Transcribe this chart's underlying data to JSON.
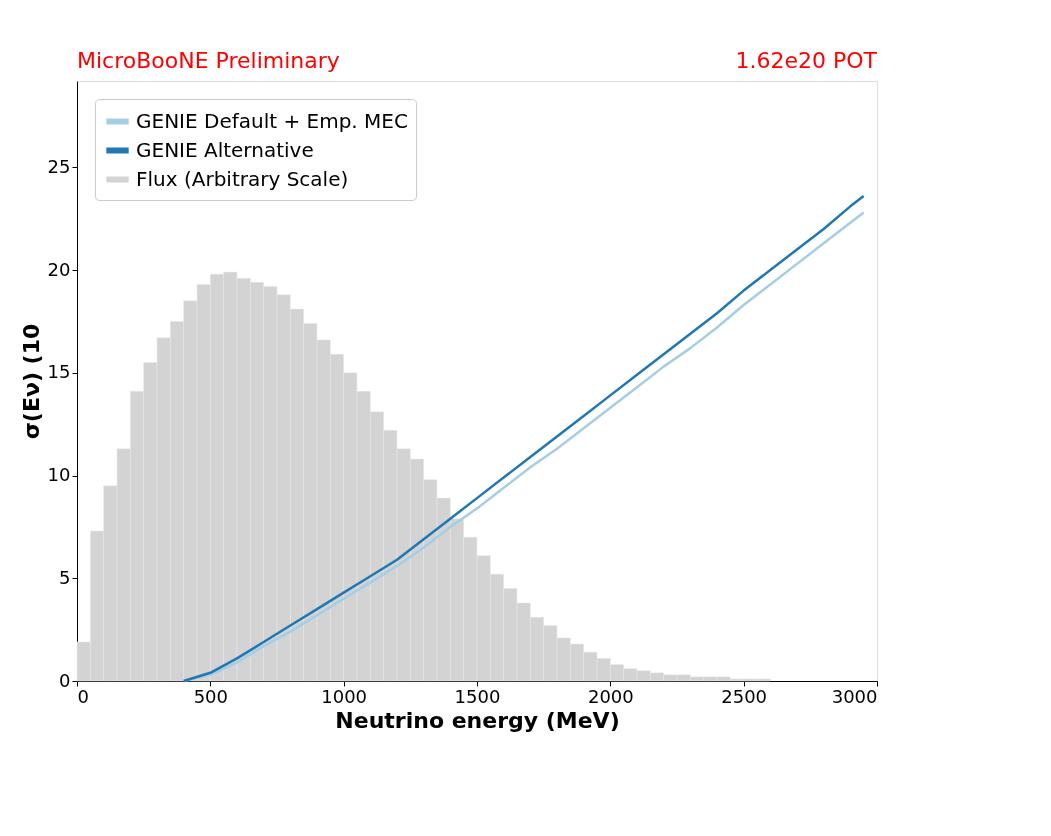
{
  "chart_data": {
    "type": "line",
    "xlabel": "Neutrino energy (MeV)",
    "ylabel": "σ(Eν) (10",
    "annotations": [
      "MicroBooNE Preliminary",
      "1.62e20 POT"
    ],
    "xlim": [
      0,
      3000
    ],
    "xticks": [
      0,
      500,
      1000,
      1500,
      2000,
      2500,
      3000
    ],
    "ylim": [
      0,
      29.2
    ],
    "yticks": [
      0,
      5,
      10,
      15,
      20,
      25
    ],
    "grid": false,
    "legend": "top left",
    "series": [
      {
        "name": "GENIE Default + Emp. MEC",
        "color": "#a6cee3",
        "x": [
          400,
          500,
          600,
          700,
          800,
          900,
          1000,
          1100,
          1200,
          1300,
          1400,
          1500,
          1600,
          1700,
          1800,
          1900,
          2000,
          2100,
          2200,
          2300,
          2400,
          2500,
          2600,
          2700,
          2800,
          2900,
          2950
        ],
        "values": [
          0,
          0.3,
          0.9,
          1.7,
          2.4,
          3.2,
          4.0,
          4.8,
          5.6,
          6.5,
          7.5,
          8.4,
          9.4,
          10.4,
          11.3,
          12.3,
          13.3,
          14.3,
          15.3,
          16.2,
          17.2,
          18.3,
          19.3,
          20.3,
          21.3,
          22.3,
          22.8
        ]
      },
      {
        "name": "GENIE Alternative",
        "color": "#1f78b4",
        "x": [
          400,
          500,
          600,
          700,
          800,
          900,
          1000,
          1100,
          1200,
          1300,
          1400,
          1500,
          1600,
          1700,
          1800,
          1900,
          2000,
          2100,
          2200,
          2300,
          2400,
          2500,
          2600,
          2700,
          2800,
          2900,
          2950
        ],
        "values": [
          0,
          0.4,
          1.1,
          1.9,
          2.7,
          3.5,
          4.3,
          5.1,
          5.9,
          6.9,
          7.9,
          8.9,
          9.9,
          10.9,
          11.9,
          12.9,
          13.9,
          14.9,
          15.9,
          16.9,
          17.9,
          19.0,
          20.0,
          21.0,
          22.0,
          23.1,
          23.6
        ]
      },
      {
        "name": "Flux (Arbitrary Scale)",
        "type": "histogram",
        "color": "#d3d3d3",
        "bins": [
          0,
          50,
          100,
          150,
          200,
          250,
          300,
          350,
          400,
          450,
          500,
          550,
          600,
          650,
          700,
          750,
          800,
          850,
          900,
          950,
          1000,
          1050,
          1100,
          1150,
          1200,
          1250,
          1300,
          1350,
          1400,
          1450,
          1500,
          1550,
          1600,
          1650,
          1700,
          1750,
          1800,
          1850,
          1900,
          1950,
          2000,
          2050,
          2100,
          2150,
          2200,
          2250,
          2300,
          2350,
          2400,
          2450,
          2500,
          2550,
          2600
        ],
        "values": [
          1.9,
          7.3,
          9.5,
          11.3,
          14.1,
          15.5,
          16.7,
          17.5,
          18.5,
          19.3,
          19.8,
          19.9,
          19.6,
          19.4,
          19.2,
          18.8,
          18.1,
          17.4,
          16.6,
          15.9,
          15.0,
          14.1,
          13.1,
          12.2,
          11.3,
          10.8,
          9.8,
          8.9,
          7.9,
          7.0,
          6.1,
          5.2,
          4.5,
          3.8,
          3.1,
          2.7,
          2.1,
          1.8,
          1.4,
          1.1,
          0.8,
          0.6,
          0.5,
          0.4,
          0.3,
          0.3,
          0.2,
          0.2,
          0.2,
          0.1,
          0.1,
          0.1
        ]
      }
    ]
  }
}
